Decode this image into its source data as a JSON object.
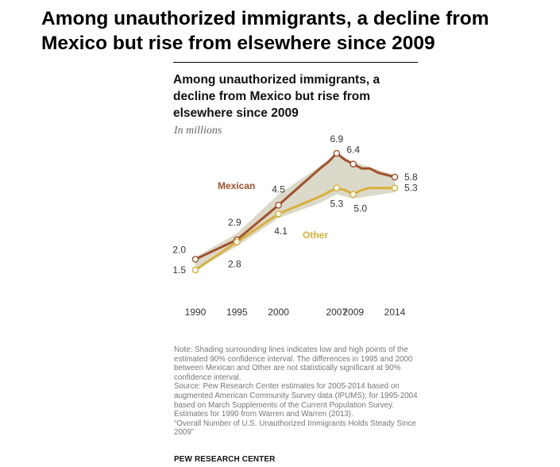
{
  "page_title": "Among unauthorized immigrants, a decline from Mexico but rise from elsewhere since 2009",
  "chart_title": "Among unauthorized immigrants, a decline from Mexico but rise from elsewhere since 2009",
  "chart_subtitle": "In millions",
  "note_lines": [
    "Note: Shading surrounding lines indicates low and high points of the estimated 90% confidence interval. The differences in 1995 and 2000 between Mexican and Other are not statistically significant at 90% confidence interval.",
    "Source: Pew Research Center estimates for 2005-2014 based on augmented American Community Survey data (IPUMS); for 1995-2004 based on March Supplements of the Current Population Survey. Estimates for 1990 from Warren and Warren (2013).",
    "“Overall Number of U.S. Unauthorized Immigrants Holds Steady Since 2009”"
  ],
  "source_mark": "PEW RESEARCH CENTER",
  "colors": {
    "mexican": "#a0522d",
    "other": "#d8b13a",
    "band": "#d5d2c0"
  },
  "chart_data": {
    "type": "line",
    "title": "Among unauthorized immigrants, a decline from Mexico but rise from elsewhere since 2009",
    "subtitle": "In millions",
    "xlabel": "",
    "ylabel": "",
    "x_ticks": [
      1990,
      1995,
      2000,
      2007,
      2009,
      2014
    ],
    "xlim": [
      1990,
      2014
    ],
    "ylim": [
      1.0,
      7.5
    ],
    "grid": false,
    "series": [
      {
        "name": "Mexican",
        "x": [
          1990,
          1995,
          2000,
          2005,
          2006,
          2007,
          2008,
          2009,
          2010,
          2011,
          2012,
          2013,
          2014
        ],
        "values": [
          2.0,
          2.9,
          4.5,
          6.2,
          6.5,
          6.9,
          6.6,
          6.4,
          6.2,
          6.2,
          6.0,
          5.9,
          5.8
        ],
        "labeled": [
          {
            "x": 1990,
            "value": 2.0,
            "text": "2.0"
          },
          {
            "x": 1995,
            "value": 2.9,
            "text": "2.9"
          },
          {
            "x": 2000,
            "value": 4.5,
            "text": "4.5"
          },
          {
            "x": 2007,
            "value": 6.9,
            "text": "6.9"
          },
          {
            "x": 2009,
            "value": 6.4,
            "text": "6.4"
          },
          {
            "x": 2014,
            "value": 5.8,
            "text": "5.8"
          }
        ]
      },
      {
        "name": "Other",
        "x": [
          1990,
          1995,
          2000,
          2005,
          2006,
          2007,
          2008,
          2009,
          2010,
          2011,
          2012,
          2013,
          2014
        ],
        "values": [
          1.5,
          2.8,
          4.1,
          4.9,
          5.1,
          5.3,
          5.2,
          5.0,
          5.2,
          5.3,
          5.3,
          5.3,
          5.3
        ],
        "labeled": [
          {
            "x": 1990,
            "value": 1.5,
            "text": "1.5"
          },
          {
            "x": 1995,
            "value": 2.8,
            "text": "2.8"
          },
          {
            "x": 2000,
            "value": 4.1,
            "text": "4.1"
          },
          {
            "x": 2007,
            "value": 5.3,
            "text": "5.3"
          },
          {
            "x": 2009,
            "value": 5.0,
            "text": "5.0"
          },
          {
            "x": 2014,
            "value": 5.3,
            "text": "5.3"
          }
        ]
      }
    ],
    "confidence_band": {
      "x": [
        1990,
        1995,
        2000,
        2005,
        2007,
        2009,
        2014
      ],
      "low": [
        1.5,
        2.6,
        3.9,
        4.6,
        5.0,
        4.8,
        5.1
      ],
      "high": [
        2.1,
        3.2,
        5.0,
        6.3,
        6.9,
        6.5,
        5.9
      ]
    }
  }
}
